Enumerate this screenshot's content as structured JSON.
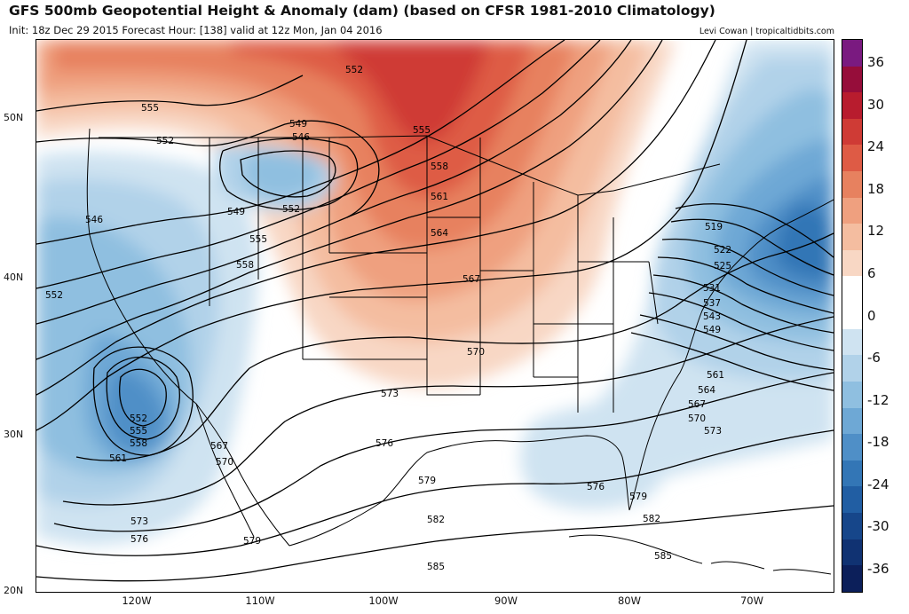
{
  "title": "GFS 500mb Geopotential Height & Anomaly (dam) (based on CFSR 1981-2010 Climatology)",
  "subtitle": "Init: 18z Dec 29 2015   Forecast Hour: [138]   valid at 12z Mon, Jan 04 2016",
  "credit": "Levi Cowan | tropicaltidbits.com",
  "map": {
    "lat_ticks": [
      {
        "label": "50N",
        "value": 50
      },
      {
        "label": "40N",
        "value": 40
      },
      {
        "label": "30N",
        "value": 30
      },
      {
        "label": "20N",
        "value": 20
      }
    ],
    "lon_ticks": [
      {
        "label": "120W",
        "value": -120
      },
      {
        "label": "110W",
        "value": -110
      },
      {
        "label": "100W",
        "value": -100
      },
      {
        "label": "90W",
        "value": -90
      },
      {
        "label": "80W",
        "value": -80
      },
      {
        "label": "70W",
        "value": -70
      }
    ],
    "contour_labels": [
      "555",
      "552",
      "549",
      "546",
      "552",
      "549",
      "552",
      "555",
      "558",
      "546",
      "552",
      "555",
      "558",
      "561",
      "564",
      "567",
      "570",
      "573",
      "576",
      "579",
      "582",
      "585",
      "552",
      "555",
      "558",
      "561",
      "567",
      "570",
      "573",
      "576",
      "579",
      "519",
      "522",
      "525",
      "531",
      "537",
      "543",
      "549",
      "561",
      "564",
      "567",
      "570",
      "573",
      "576",
      "579",
      "582",
      "585"
    ]
  },
  "colorbar": {
    "labels": [
      "36",
      "30",
      "24",
      "18",
      "12",
      "6",
      "0",
      "-6",
      "-12",
      "-18",
      "-24",
      "-30",
      "-36"
    ],
    "colors": [
      "#7a1a80",
      "#960d3a",
      "#b81c2e",
      "#cf3b35",
      "#de5b45",
      "#e7815f",
      "#efa07f",
      "#f4bda0",
      "#f8d7c4",
      "#ffffff",
      "#ffffff",
      "#cfe3f1",
      "#b1d2e9",
      "#8fbfe0",
      "#6ea8d5",
      "#4f8fc7",
      "#3376b6",
      "#215ea3",
      "#16468a",
      "#103272",
      "#0c1f5a"
    ]
  }
}
